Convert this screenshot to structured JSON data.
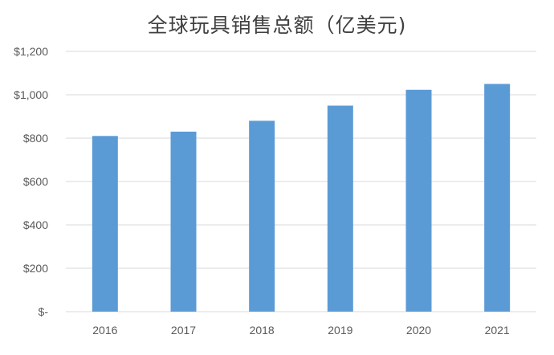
{
  "chart_data": {
    "type": "bar",
    "title": "全球玩具销售总额（亿美元)",
    "categories": [
      "2016",
      "2017",
      "2018",
      "2019",
      "2020",
      "2021"
    ],
    "values": [
      810,
      830,
      880,
      950,
      1023,
      1050
    ],
    "ylim": [
      0,
      1200
    ],
    "y_tick_values": [
      0,
      200,
      400,
      600,
      800,
      1000,
      1200
    ],
    "y_tick_labels": [
      "$-",
      "$200",
      "$400",
      "$600",
      "$800",
      "$1,000",
      "$1,200"
    ],
    "xlabel": "",
    "ylabel": "",
    "grid": true,
    "bar_color": "#5B9BD5",
    "grid_color": "#D9D9D9"
  }
}
